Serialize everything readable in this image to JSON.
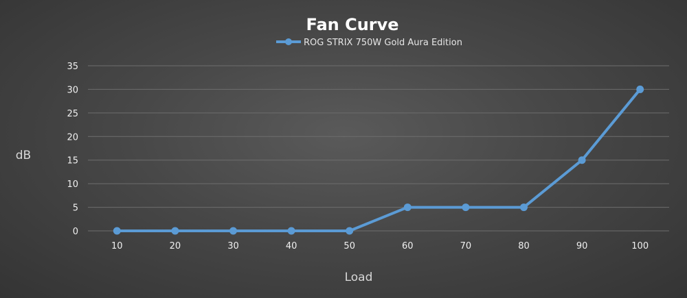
{
  "chart_data": {
    "type": "line",
    "title": "Fan Curve",
    "xlabel": "Load",
    "ylabel": "dB",
    "categories": [
      "10",
      "20",
      "30",
      "40",
      "50",
      "60",
      "70",
      "80",
      "90",
      "100"
    ],
    "series": [
      {
        "name": "ROG STRIX 750W Gold Aura Edition",
        "values": [
          0,
          0,
          0,
          0,
          0,
          5,
          5,
          5,
          15,
          30
        ]
      }
    ],
    "yticks": [
      0,
      5,
      10,
      15,
      20,
      25,
      30,
      35
    ],
    "ylim": [
      0,
      35
    ],
    "grid": true,
    "legend_position": "top",
    "colors": {
      "series": "#5b9bd5",
      "grid": "#6e6e6e",
      "text": "#f0f0f0"
    }
  }
}
